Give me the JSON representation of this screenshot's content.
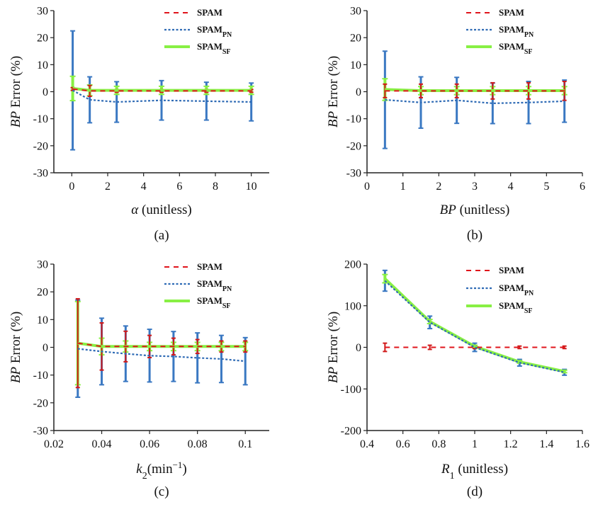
{
  "colors": {
    "spam": "#e0141b",
    "spam_pn": "#2f6bb5",
    "spam_sf": "#88f044",
    "errorbar_pn": "#3a78c2",
    "errorbar_spam": "#d01a1a",
    "errorbar_spam_edge": "#8a6a00"
  },
  "chart_data": [
    {
      "panel": "(a)",
      "type": "line",
      "xlabel": "α (unitless)",
      "ylabel": "BP Error (%)",
      "xlim": [
        -1,
        11
      ],
      "ylim": [
        -30,
        30
      ],
      "xticks": [
        0,
        2,
        4,
        6,
        8,
        10
      ],
      "yticks": [
        30,
        20,
        10,
        0,
        -10,
        -20,
        -30
      ],
      "legend_position": "top-right",
      "x": [
        0.05,
        1,
        2.5,
        5,
        7.5,
        10
      ],
      "series": [
        {
          "name": "SPAM",
          "style": "dashed",
          "values": [
            1,
            0.3,
            0.3,
            0.3,
            0.3,
            0.3
          ],
          "error": [
            0.5,
            2,
            0.5,
            0.5,
            0.5,
            0.5
          ]
        },
        {
          "name": "SPAMPN",
          "style": "dotted",
          "values": [
            0.5,
            -3,
            -3.8,
            -3.2,
            -3.5,
            -3.8
          ],
          "error": [
            22,
            8.5,
            7.5,
            7.3,
            7.0,
            7.0
          ]
        },
        {
          "name": "SPAMSF",
          "style": "solid",
          "values": [
            1.2,
            0.5,
            0.5,
            0.5,
            0.5,
            0.5
          ],
          "error": [
            4.5,
            2,
            1.5,
            1.5,
            1.5,
            1.5
          ]
        }
      ]
    },
    {
      "panel": "(b)",
      "type": "line",
      "xlabel": "BP (unitless)",
      "ylabel": "BP Error (%)",
      "xlim": [
        0,
        6
      ],
      "ylim": [
        -30,
        30
      ],
      "xticks": [
        0,
        1,
        2,
        3,
        4,
        5,
        6
      ],
      "yticks": [
        30,
        20,
        10,
        0,
        -10,
        -20,
        -30
      ],
      "legend_position": "top-right",
      "x": [
        0.5,
        1.5,
        2.5,
        3.5,
        4.5,
        5.5
      ],
      "series": [
        {
          "name": "SPAM",
          "style": "dashed",
          "values": [
            0.3,
            0.3,
            0.3,
            0.3,
            0.3,
            0.3
          ],
          "error": [
            2.5,
            2.5,
            2.5,
            3.0,
            3.0,
            3.5
          ]
        },
        {
          "name": "SPAMPN",
          "style": "dotted",
          "values": [
            -3,
            -4,
            -3.2,
            -4.3,
            -4,
            -3.5
          ],
          "error": [
            18,
            9.5,
            8.5,
            7.5,
            7.8,
            7.8
          ]
        },
        {
          "name": "SPAMSF",
          "style": "solid",
          "values": [
            0.8,
            0.4,
            0.4,
            0.4,
            0.4,
            0.4
          ],
          "error": [
            4,
            1.5,
            1.5,
            1.5,
            1.5,
            1.5
          ]
        }
      ]
    },
    {
      "panel": "(c)",
      "type": "line",
      "xlabel": "k2(min−1)",
      "ylabel": "BP Error (%)",
      "xlim": [
        0.02,
        0.11
      ],
      "ylim": [
        -30,
        30
      ],
      "xticks": [
        0.02,
        0.04,
        0.06,
        0.08,
        0.1
      ],
      "yticks": [
        30,
        20,
        10,
        0,
        -10,
        -20,
        -30
      ],
      "legend_position": "top-right",
      "x": [
        0.03,
        0.04,
        0.05,
        0.06,
        0.07,
        0.08,
        0.09,
        0.1
      ],
      "series": [
        {
          "name": "SPAM",
          "style": "dashed",
          "values": [
            1.5,
            0.3,
            0.3,
            0.3,
            0.3,
            0.3,
            0.3,
            0.3
          ],
          "error": [
            16,
            8.5,
            5.5,
            4,
            3,
            2.5,
            2,
            2
          ]
        },
        {
          "name": "SPAMPN",
          "style": "dotted",
          "values": [
            -0.5,
            -1.5,
            -2.3,
            -3,
            -3.3,
            -3.8,
            -4.2,
            -5
          ],
          "error": [
            17.5,
            12,
            10,
            9.5,
            9,
            9,
            8.5,
            8.5
          ]
        },
        {
          "name": "SPAMSF",
          "style": "solid",
          "values": [
            1.5,
            0.3,
            0.3,
            0.3,
            0.3,
            0.3,
            0.3,
            0.3
          ],
          "error": [
            15,
            3,
            2,
            1.5,
            1.5,
            1.5,
            1.5,
            1.5
          ]
        }
      ]
    },
    {
      "panel": "(d)",
      "type": "line",
      "xlabel": "R1 (unitless)",
      "ylabel": "BP Error (%)",
      "xlim": [
        0.4,
        1.6
      ],
      "ylim": [
        -200,
        200
      ],
      "xticks": [
        0.4,
        0.6,
        0.8,
        1,
        1.2,
        1.4,
        1.6
      ],
      "yticks": [
        200,
        100,
        0,
        -100,
        -200
      ],
      "legend_position": "top-right",
      "x": [
        0.5,
        0.75,
        1,
        1.25,
        1.5
      ],
      "series": [
        {
          "name": "SPAM",
          "style": "dashed",
          "values": [
            0,
            0,
            0,
            0,
            0
          ],
          "error": [
            10,
            5,
            3,
            3,
            3
          ]
        },
        {
          "name": "SPAMPN",
          "style": "dotted",
          "values": [
            160,
            60,
            0,
            -37,
            -60
          ],
          "error": [
            25,
            15,
            10,
            8,
            7
          ]
        },
        {
          "name": "SPAMSF",
          "style": "solid",
          "values": [
            165,
            62,
            2,
            -35,
            -58
          ],
          "error": [
            10,
            5,
            3,
            3,
            3
          ]
        }
      ]
    }
  ],
  "panels": [
    {
      "label": "(a)",
      "xlabel_prefix": "",
      "xlabel_italic": "α",
      "xlabel_sub": "",
      "xlabel_sup": "",
      "xlabel_rest": " (unitless)",
      "ylabel_italic": "BP",
      "ylabel_rest": " Error (%)",
      "xtick_labels": [
        "0",
        "2",
        "4",
        "6",
        "8",
        "10"
      ],
      "ytick_labels": [
        "30",
        "20",
        "10",
        "0",
        "-10",
        "-20",
        "-30"
      ],
      "legend": [
        {
          "main": "SPAM",
          "sub": ""
        },
        {
          "main": "SPAM",
          "sub": "PN"
        },
        {
          "main": "SPAM",
          "sub": "SF"
        }
      ]
    },
    {
      "label": "(b)",
      "xlabel_italic": "BP",
      "xlabel_sub": "",
      "xlabel_sup": "",
      "xlabel_rest": " (unitless)",
      "ylabel_italic": "BP",
      "ylabel_rest": " Error (%)",
      "xtick_labels": [
        "0",
        "1",
        "2",
        "3",
        "4",
        "5",
        "6"
      ],
      "ytick_labels": [
        "30",
        "20",
        "10",
        "0",
        "-10",
        "-20",
        "-30"
      ],
      "legend": [
        {
          "main": "SPAM",
          "sub": ""
        },
        {
          "main": "SPAM",
          "sub": "PN"
        },
        {
          "main": "SPAM",
          "sub": "SF"
        }
      ]
    },
    {
      "label": "(c)",
      "xlabel_italic": "k",
      "xlabel_sub": "2",
      "xlabel_mid": "(min",
      "xlabel_sup": "−1",
      "xlabel_rest": ")",
      "ylabel_italic": "BP",
      "ylabel_rest": " Error (%)",
      "xtick_labels": [
        "0.02",
        "0.04",
        "0.06",
        "0.08",
        "0.1"
      ],
      "ytick_labels": [
        "30",
        "20",
        "10",
        "0",
        "-10",
        "-20",
        "-30"
      ],
      "legend": [
        {
          "main": "SPAM",
          "sub": ""
        },
        {
          "main": "SPAM",
          "sub": "PN"
        },
        {
          "main": "SPAM",
          "sub": "SF"
        }
      ]
    },
    {
      "label": "(d)",
      "xlabel_italic": "R",
      "xlabel_sub": "1",
      "xlabel_sup": "",
      "xlabel_rest": " (unitless)",
      "ylabel_italic": "BP",
      "ylabel_rest": " Error (%)",
      "xtick_labels": [
        "0.4",
        "0.6",
        "0.8",
        "1",
        "1.2",
        "1.4",
        "1.6"
      ],
      "ytick_labels": [
        "200",
        "100",
        "0",
        "-100",
        "-200"
      ],
      "legend": [
        {
          "main": "SPAM",
          "sub": ""
        },
        {
          "main": "SPAM",
          "sub": "PN"
        },
        {
          "main": "SPAM",
          "sub": "SF"
        }
      ]
    }
  ]
}
